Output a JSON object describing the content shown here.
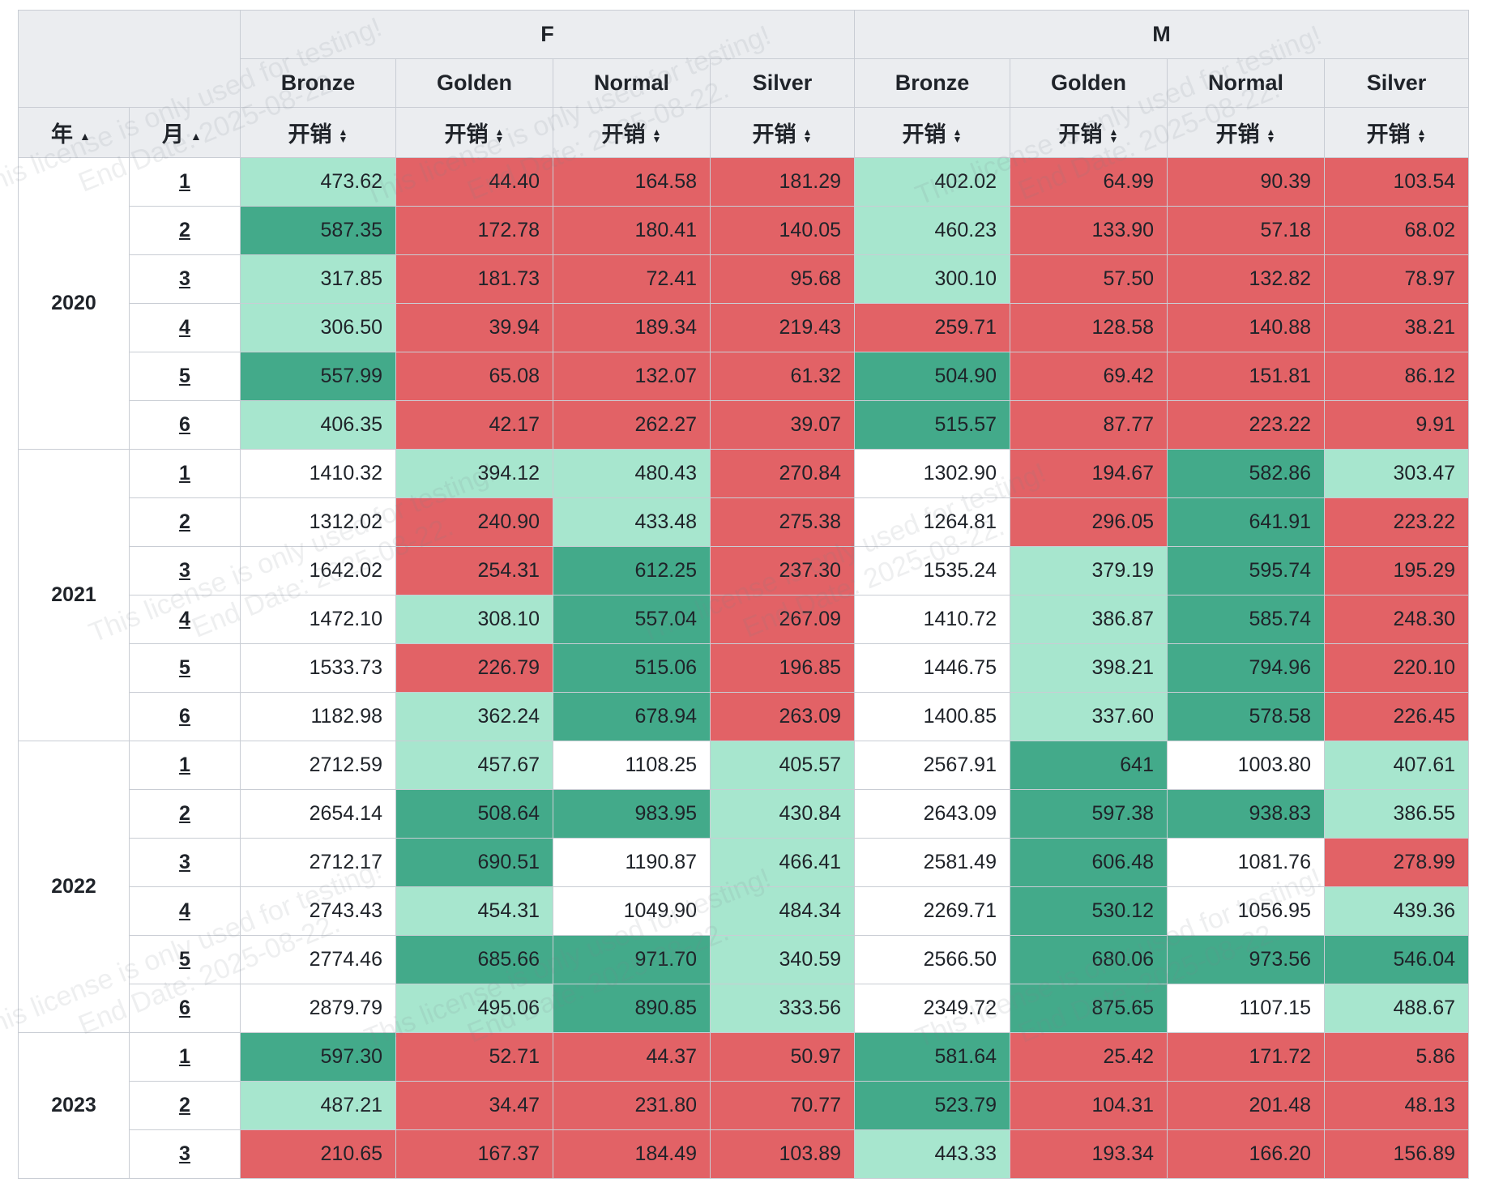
{
  "header": {
    "groups": [
      "F",
      "M"
    ],
    "categories": [
      "Bronze",
      "Golden",
      "Normal",
      "Silver",
      "Bronze",
      "Golden",
      "Normal",
      "Silver"
    ],
    "measure_label": "开销",
    "year_label": "年",
    "month_label": "月"
  },
  "colors": {
    "red": "#e26266",
    "light_green": "#a7e6ce",
    "dark_green": "#43aa8a",
    "white": "#ffffff",
    "header_bg": "#ebedf0"
  },
  "watermark": {
    "line1": "This license is only used for testing!",
    "line2": "End Date: 2025-08-22."
  },
  "rows": [
    {
      "year": "2020",
      "month": "1",
      "values": [
        "473.62",
        "44.40",
        "164.58",
        "181.29",
        "402.02",
        "64.99",
        "90.39",
        "103.54"
      ],
      "colors": [
        "lg",
        "r",
        "r",
        "r",
        "lg",
        "r",
        "r",
        "r"
      ]
    },
    {
      "year": "2020",
      "month": "2",
      "values": [
        "587.35",
        "172.78",
        "180.41",
        "140.05",
        "460.23",
        "133.90",
        "57.18",
        "68.02"
      ],
      "colors": [
        "dg",
        "r",
        "r",
        "r",
        "lg",
        "r",
        "r",
        "r"
      ]
    },
    {
      "year": "2020",
      "month": "3",
      "values": [
        "317.85",
        "181.73",
        "72.41",
        "95.68",
        "300.10",
        "57.50",
        "132.82",
        "78.97"
      ],
      "colors": [
        "lg",
        "r",
        "r",
        "r",
        "lg",
        "r",
        "r",
        "r"
      ]
    },
    {
      "year": "2020",
      "month": "4",
      "values": [
        "306.50",
        "39.94",
        "189.34",
        "219.43",
        "259.71",
        "128.58",
        "140.88",
        "38.21"
      ],
      "colors": [
        "lg",
        "r",
        "r",
        "r",
        "r",
        "r",
        "r",
        "r"
      ]
    },
    {
      "year": "2020",
      "month": "5",
      "values": [
        "557.99",
        "65.08",
        "132.07",
        "61.32",
        "504.90",
        "69.42",
        "151.81",
        "86.12"
      ],
      "colors": [
        "dg",
        "r",
        "r",
        "r",
        "dg",
        "r",
        "r",
        "r"
      ]
    },
    {
      "year": "2020",
      "month": "6",
      "values": [
        "406.35",
        "42.17",
        "262.27",
        "39.07",
        "515.57",
        "87.77",
        "223.22",
        "9.91"
      ],
      "colors": [
        "lg",
        "r",
        "r",
        "r",
        "dg",
        "r",
        "r",
        "r"
      ]
    },
    {
      "year": "2021",
      "month": "1",
      "values": [
        "1410.32",
        "394.12",
        "480.43",
        "270.84",
        "1302.90",
        "194.67",
        "582.86",
        "303.47"
      ],
      "colors": [
        "w",
        "lg",
        "lg",
        "r",
        "w",
        "r",
        "dg",
        "lg"
      ]
    },
    {
      "year": "2021",
      "month": "2",
      "values": [
        "1312.02",
        "240.90",
        "433.48",
        "275.38",
        "1264.81",
        "296.05",
        "641.91",
        "223.22"
      ],
      "colors": [
        "w",
        "r",
        "lg",
        "r",
        "w",
        "r",
        "dg",
        "r"
      ]
    },
    {
      "year": "2021",
      "month": "3",
      "values": [
        "1642.02",
        "254.31",
        "612.25",
        "237.30",
        "1535.24",
        "379.19",
        "595.74",
        "195.29"
      ],
      "colors": [
        "w",
        "r",
        "dg",
        "r",
        "w",
        "lg",
        "dg",
        "r"
      ]
    },
    {
      "year": "2021",
      "month": "4",
      "values": [
        "1472.10",
        "308.10",
        "557.04",
        "267.09",
        "1410.72",
        "386.87",
        "585.74",
        "248.30"
      ],
      "colors": [
        "w",
        "lg",
        "dg",
        "r",
        "w",
        "lg",
        "dg",
        "r"
      ]
    },
    {
      "year": "2021",
      "month": "5",
      "values": [
        "1533.73",
        "226.79",
        "515.06",
        "196.85",
        "1446.75",
        "398.21",
        "794.96",
        "220.10"
      ],
      "colors": [
        "w",
        "r",
        "dg",
        "r",
        "w",
        "lg",
        "dg",
        "r"
      ]
    },
    {
      "year": "2021",
      "month": "6",
      "values": [
        "1182.98",
        "362.24",
        "678.94",
        "263.09",
        "1400.85",
        "337.60",
        "578.58",
        "226.45"
      ],
      "colors": [
        "w",
        "lg",
        "dg",
        "r",
        "w",
        "lg",
        "dg",
        "r"
      ]
    },
    {
      "year": "2022",
      "month": "1",
      "values": [
        "2712.59",
        "457.67",
        "1108.25",
        "405.57",
        "2567.91",
        "641",
        "1003.80",
        "407.61"
      ],
      "colors": [
        "w",
        "lg",
        "w",
        "lg",
        "w",
        "dg",
        "w",
        "lg"
      ]
    },
    {
      "year": "2022",
      "month": "2",
      "values": [
        "2654.14",
        "508.64",
        "983.95",
        "430.84",
        "2643.09",
        "597.38",
        "938.83",
        "386.55"
      ],
      "colors": [
        "w",
        "dg",
        "dg",
        "lg",
        "w",
        "dg",
        "dg",
        "lg"
      ]
    },
    {
      "year": "2022",
      "month": "3",
      "values": [
        "2712.17",
        "690.51",
        "1190.87",
        "466.41",
        "2581.49",
        "606.48",
        "1081.76",
        "278.99"
      ],
      "colors": [
        "w",
        "dg",
        "w",
        "lg",
        "w",
        "dg",
        "w",
        "r"
      ]
    },
    {
      "year": "2022",
      "month": "4",
      "values": [
        "2743.43",
        "454.31",
        "1049.90",
        "484.34",
        "2269.71",
        "530.12",
        "1056.95",
        "439.36"
      ],
      "colors": [
        "w",
        "lg",
        "w",
        "lg",
        "w",
        "dg",
        "w",
        "lg"
      ]
    },
    {
      "year": "2022",
      "month": "5",
      "values": [
        "2774.46",
        "685.66",
        "971.70",
        "340.59",
        "2566.50",
        "680.06",
        "973.56",
        "546.04"
      ],
      "colors": [
        "w",
        "dg",
        "dg",
        "lg",
        "w",
        "dg",
        "dg",
        "dg"
      ]
    },
    {
      "year": "2022",
      "month": "6",
      "values": [
        "2879.79",
        "495.06",
        "890.85",
        "333.56",
        "2349.72",
        "875.65",
        "1107.15",
        "488.67"
      ],
      "colors": [
        "w",
        "lg",
        "dg",
        "lg",
        "w",
        "dg",
        "w",
        "lg"
      ]
    },
    {
      "year": "2023",
      "month": "1",
      "values": [
        "597.30",
        "52.71",
        "44.37",
        "50.97",
        "581.64",
        "25.42",
        "171.72",
        "5.86"
      ],
      "colors": [
        "dg",
        "r",
        "r",
        "r",
        "dg",
        "r",
        "r",
        "r"
      ]
    },
    {
      "year": "2023",
      "month": "2",
      "values": [
        "487.21",
        "34.47",
        "231.80",
        "70.77",
        "523.79",
        "104.31",
        "201.48",
        "48.13"
      ],
      "colors": [
        "lg",
        "r",
        "r",
        "r",
        "dg",
        "r",
        "r",
        "r"
      ]
    },
    {
      "year": "2023",
      "month": "3",
      "values": [
        "210.65",
        "167.37",
        "184.49",
        "103.89",
        "443.33",
        "193.34",
        "166.20",
        "156.89"
      ],
      "colors": [
        "r",
        "r",
        "r",
        "r",
        "lg",
        "r",
        "r",
        "r"
      ]
    }
  ]
}
